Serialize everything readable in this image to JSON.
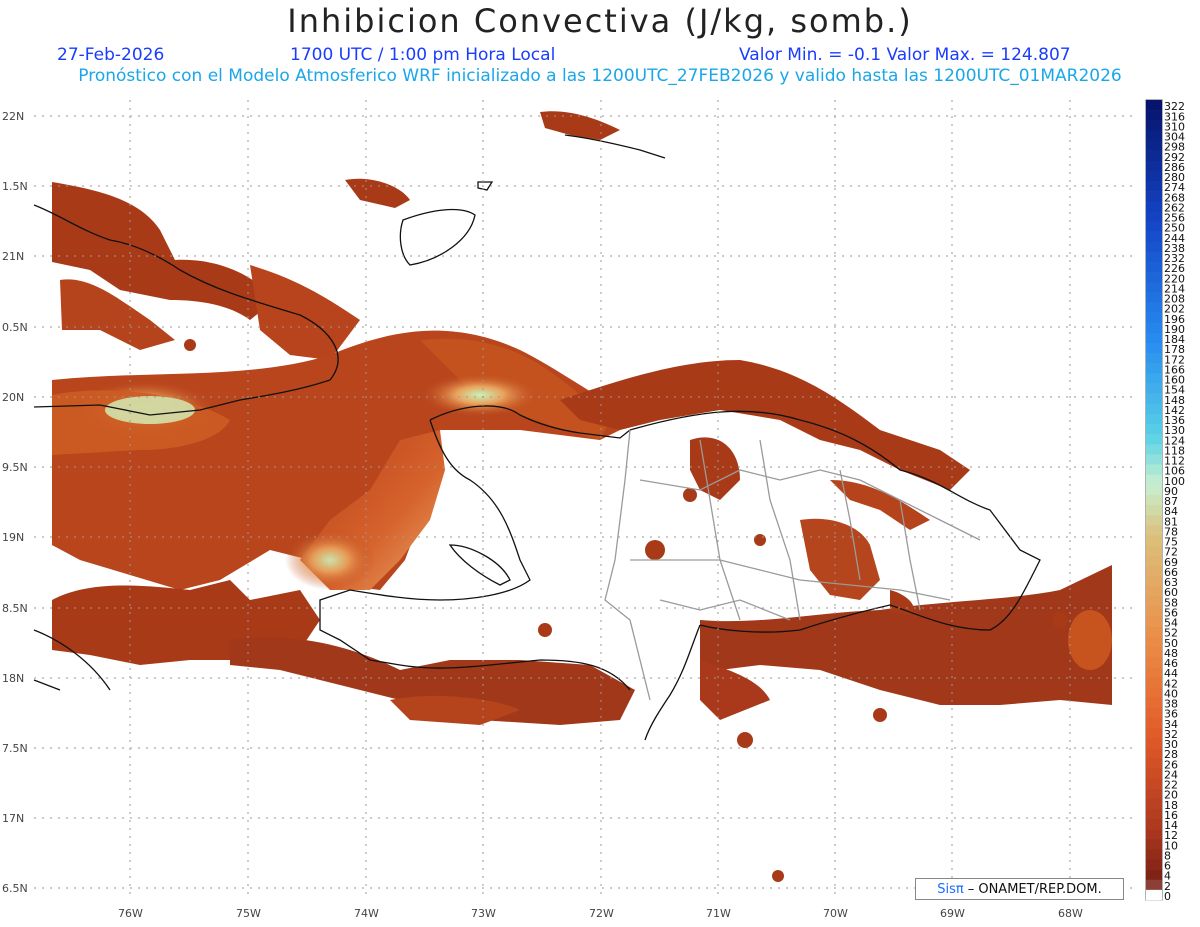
{
  "title": "Inhibicion Convectiva (J/kg, somb.)",
  "header": {
    "date": "27-Feb-2026",
    "time": "1700 UTC / 1:00 pm Hora Local",
    "minmax": "Valor Min. = -0.1  Valor Max. = 124.807",
    "subtitle": "Pronóstico con el Modelo Atmosferico WRF inicializado a las 1200UTC_27FEB2026 y valido hasta las  1200UTC_01MAR2026"
  },
  "axes": {
    "lat_labels": [
      "22N",
      "1.5N",
      "21N",
      "0.5N",
      "20N",
      "9.5N",
      "19N",
      "8.5N",
      "18N",
      "7.5N",
      "17N",
      "6.5N"
    ],
    "lon_labels": [
      "76W",
      "75W",
      "74W",
      "73W",
      "72W",
      "71W",
      "70W",
      "69W",
      "68W"
    ]
  },
  "colorbar": {
    "labels": [
      "322",
      "316",
      "310",
      "304",
      "298",
      "292",
      "286",
      "280",
      "274",
      "268",
      "262",
      "256",
      "250",
      "244",
      "238",
      "232",
      "226",
      "220",
      "214",
      "208",
      "202",
      "196",
      "190",
      "184",
      "178",
      "172",
      "166",
      "160",
      "154",
      "148",
      "142",
      "136",
      "130",
      "124",
      "118",
      "112",
      "106",
      "100",
      "90",
      "87",
      "84",
      "81",
      "78",
      "75",
      "72",
      "69",
      "66",
      "63",
      "60",
      "58",
      "56",
      "54",
      "52",
      "50",
      "48",
      "46",
      "44",
      "42",
      "40",
      "38",
      "36",
      "34",
      "32",
      "30",
      "28",
      "26",
      "24",
      "22",
      "20",
      "18",
      "16",
      "14",
      "12",
      "10",
      "8",
      "6",
      "4",
      "2",
      "0"
    ]
  },
  "credit": {
    "logo": "Sisπ",
    "text": "– ONAMET/REP.DOM."
  },
  "colors": {
    "title_blue": "#1a3cff",
    "subtitle_cyan": "#1aa7e8",
    "field_dark": "#8e3418",
    "field_mid": "#c94a1c",
    "field_light": "#e8a060",
    "field_pale": "#bff0b0"
  }
}
